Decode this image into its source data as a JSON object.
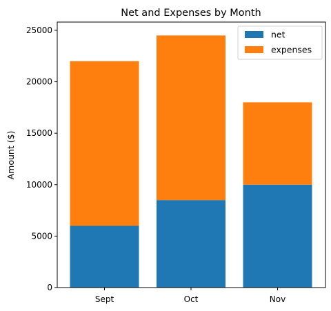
{
  "chart_data": {
    "type": "bar",
    "stacked": true,
    "title": "Net and Expenses by Month",
    "xlabel": "",
    "ylabel": "Amount ($)",
    "categories": [
      "Sept",
      "Oct",
      "Nov"
    ],
    "series": [
      {
        "name": "net",
        "values": [
          6000,
          8500,
          10000
        ],
        "color": "#1f77b4"
      },
      {
        "name": "expenses",
        "values": [
          16000,
          16000,
          8000
        ],
        "color": "#ff7f0e"
      }
    ],
    "ylim": [
      0,
      25800
    ],
    "yticks": [
      0,
      5000,
      10000,
      15000,
      20000,
      25000
    ],
    "grid": false,
    "legend_position": "top-right"
  }
}
